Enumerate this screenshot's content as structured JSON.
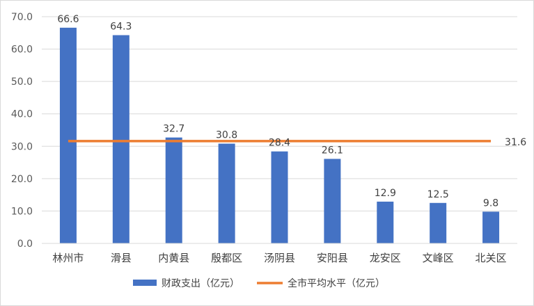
{
  "chart_data": {
    "type": "bar",
    "categories": [
      "林州市",
      "滑县",
      "内黄县",
      "殷都区",
      "汤阴县",
      "安阳县",
      "龙安区",
      "文峰区",
      "北关区"
    ],
    "series": [
      {
        "name": "财政支出（亿元）",
        "type": "bar",
        "values": [
          66.6,
          64.3,
          32.7,
          30.8,
          28.4,
          26.1,
          12.9,
          12.5,
          9.8
        ],
        "color": "#4472C4"
      },
      {
        "name": "全市平均水平（亿元）",
        "type": "line",
        "value": 31.6,
        "color": "#ED7D31"
      }
    ],
    "ylim": [
      0,
      70
    ],
    "yticks": [
      "0.0",
      "10.0",
      "20.0",
      "30.0",
      "40.0",
      "50.0",
      "60.0",
      "70.0"
    ],
    "data_labels": [
      "66.6",
      "64.3",
      "32.7",
      "30.8",
      "28.4",
      "26.1",
      "12.9",
      "12.5",
      "9.8"
    ],
    "line_label": "31.6",
    "grid": true,
    "legend_position": "bottom"
  }
}
